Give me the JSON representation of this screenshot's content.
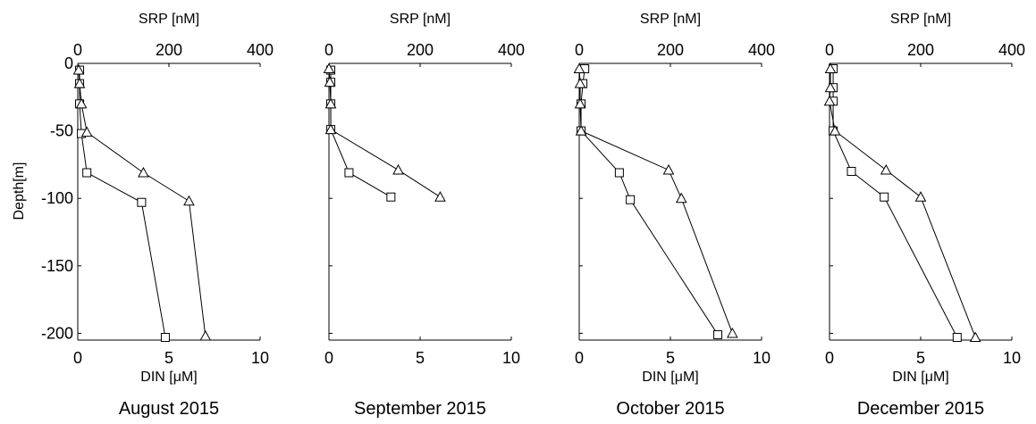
{
  "chart_data": [
    {
      "type": "line",
      "title": "August 2015",
      "ylabel": "Depth[m]",
      "ylim": [
        -205,
        0
      ],
      "yticks": [
        "0",
        "-50",
        "-100",
        "-150",
        "-200"
      ],
      "bottom_axis": {
        "label": "DIN [μM]",
        "range": [
          0,
          10
        ],
        "ticks": [
          "0",
          "5",
          "10"
        ]
      },
      "top_axis": {
        "label": "SRP [nM]",
        "range": [
          0,
          400
        ],
        "ticks": [
          "0",
          "200",
          "400"
        ]
      },
      "series": [
        {
          "marker": "square",
          "x": [
            0.1,
            0.1,
            0.1,
            0.2,
            0.5,
            3.5,
            4.8
          ],
          "y": [
            -5,
            -15,
            -30,
            -52,
            -81,
            -103,
            -203
          ]
        },
        {
          "marker": "triangle",
          "x": [
            0.05,
            0.1,
            0.2,
            0.5,
            3.6,
            6.1,
            7.0
          ],
          "y": [
            -5,
            -15,
            -30,
            -51,
            -81,
            -102,
            -202
          ]
        }
      ]
    },
    {
      "type": "line",
      "title": "September 2015",
      "ylabel": "",
      "ylim": [
        -205,
        0
      ],
      "yticks": [],
      "bottom_axis": {
        "label": "",
        "range": [
          0,
          10
        ],
        "ticks": [
          "0",
          "5",
          "10"
        ]
      },
      "top_axis": {
        "label": "SRP [nM]",
        "range": [
          0,
          400
        ],
        "ticks": [
          "0",
          "200",
          "400"
        ]
      },
      "series": [
        {
          "marker": "square",
          "x": [
            0.1,
            0.1,
            0.1,
            0.1,
            1.1,
            3.4
          ],
          "y": [
            -5,
            -14,
            -30,
            -49,
            -81,
            -99
          ]
        },
        {
          "marker": "triangle",
          "x": [
            0.0,
            0.05,
            0.1,
            0.1,
            3.8,
            6.1
          ],
          "y": [
            -4,
            -14,
            -30,
            -49,
            -79,
            -99
          ]
        }
      ]
    },
    {
      "type": "line",
      "title": "October 2015",
      "ylabel": "",
      "ylim": [
        -205,
        0
      ],
      "yticks": [],
      "bottom_axis": {
        "label": "DIN [μM]",
        "range": [
          0,
          10
        ],
        "ticks": [
          "0",
          "5",
          "10"
        ]
      },
      "top_axis": {
        "label": "SRP [nM]",
        "range": [
          0,
          400
        ],
        "ticks": [
          "0",
          "200",
          "400"
        ]
      },
      "series": [
        {
          "marker": "square",
          "x": [
            0.3,
            0.2,
            0.1,
            0.1,
            2.2,
            2.8,
            7.6
          ],
          "y": [
            -4,
            -15,
            -30,
            -50,
            -81,
            -101,
            -201
          ]
        },
        {
          "marker": "triangle",
          "x": [
            0.0,
            0.05,
            0.05,
            0.1,
            4.9,
            5.6,
            8.4
          ],
          "y": [
            -4,
            -15,
            -30,
            -50,
            -79,
            -100,
            -200
          ]
        }
      ]
    },
    {
      "type": "line",
      "title": "December 2015",
      "ylabel": "",
      "ylim": [
        -205,
        0
      ],
      "yticks": [],
      "bottom_axis": {
        "label": "DIN [μM]",
        "range": [
          0,
          10
        ],
        "ticks": [
          "0",
          "5",
          "10"
        ]
      },
      "top_axis": {
        "label": "SRP [nM]",
        "range": [
          0,
          400
        ],
        "ticks": [
          "0",
          "200",
          "400"
        ]
      },
      "series": [
        {
          "marker": "square",
          "x": [
            0.2,
            0.2,
            0.2,
            0.2,
            1.2,
            3.0,
            7.0
          ],
          "y": [
            -4,
            -18,
            -28,
            -50,
            -80,
            -99,
            -203
          ]
        },
        {
          "marker": "triangle",
          "x": [
            0.05,
            0.05,
            0.0,
            0.3,
            3.1,
            5.0,
            8.0
          ],
          "y": [
            -4,
            -18,
            -28,
            -50,
            -79,
            -99,
            -203
          ]
        }
      ]
    }
  ]
}
